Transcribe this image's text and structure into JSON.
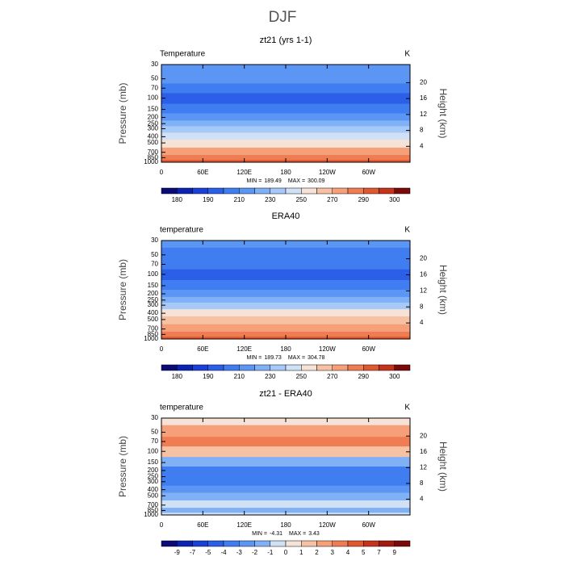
{
  "title": "DJF",
  "chart_data": [
    {
      "type": "contour",
      "title": "zt21 (yrs 1-1)",
      "field_label": "Temperature",
      "units": "K",
      "y_label": "Pressure (mb)",
      "y2_label": "Height (km)",
      "y_log": true,
      "ylim": [
        30,
        1000
      ],
      "yticks": [
        30,
        50,
        70,
        100,
        150,
        200,
        250,
        300,
        400,
        500,
        700,
        850,
        1000
      ],
      "y2lim": [
        24.55,
        0
      ],
      "y2ticks": [
        4,
        8,
        12,
        16,
        20
      ],
      "xlim": [
        0,
        360
      ],
      "xticks": [
        0,
        {
          "value": 60,
          "label": "60E"
        },
        {
          "value": 120,
          "label": "120E"
        },
        180,
        {
          "value": 240,
          "label": "120W"
        },
        {
          "value": 300,
          "label": "60W"
        }
      ],
      "min_text": "MIN =",
      "min": 189.49,
      "max_text": "MAX =",
      "max": 300.09,
      "field": {
        "pressure": [
          30,
          50,
          70,
          100,
          150,
          200,
          250,
          300,
          400,
          500,
          700,
          850,
          1000
        ],
        "values": [
          216,
          211,
          203,
          196,
          204,
          214,
          224,
          234,
          249,
          259,
          274,
          284,
          291
        ]
      },
      "colorbar": {
        "levels": [
          180,
          185,
          190,
          200,
          210,
          220,
          230,
          240,
          250,
          260,
          270,
          280,
          290,
          295,
          300
        ],
        "ticks": [
          180,
          190,
          210,
          230,
          250,
          270,
          290,
          300
        ],
        "colors": [
          "#0a0a78",
          "#0b22b2",
          "#1b40d6",
          "#2b5fe8",
          "#3f7df0",
          "#5b96f5",
          "#80b1f7",
          "#a6c9f7",
          "#d0e1f5",
          "#f6e2d6",
          "#f7c1a3",
          "#f5a079",
          "#ef7c52",
          "#e05830",
          "#c7321a",
          "#7a0a0a"
        ]
      }
    },
    {
      "type": "contour",
      "title": "ERA40",
      "field_label": "temperature",
      "units": "K",
      "y_label": "Pressure (mb)",
      "y2_label": "Height (km)",
      "y_log": true,
      "ylim": [
        30,
        1000
      ],
      "yticks": [
        30,
        50,
        70,
        100,
        150,
        200,
        250,
        300,
        400,
        500,
        700,
        850,
        1000
      ],
      "y2lim": [
        24.55,
        0
      ],
      "y2ticks": [
        4,
        8,
        12,
        16,
        20
      ],
      "xlim": [
        0,
        360
      ],
      "xticks": [
        0,
        {
          "value": 60,
          "label": "60E"
        },
        {
          "value": 120,
          "label": "120E"
        },
        180,
        {
          "value": 240,
          "label": "120W"
        },
        {
          "value": 300,
          "label": "60W"
        }
      ],
      "min_text": "MIN =",
      "min": 189.73,
      "max_text": "MAX =",
      "max": 304.78,
      "field": {
        "pressure": [
          30,
          50,
          70,
          100,
          150,
          200,
          250,
          300,
          400,
          500,
          700,
          850,
          1000
        ],
        "values": [
          214,
          208,
          200,
          194,
          205,
          216,
          227,
          236,
          250,
          260,
          275,
          285,
          292
        ]
      },
      "colorbar": {
        "levels": [
          180,
          185,
          190,
          200,
          210,
          220,
          230,
          240,
          250,
          260,
          270,
          280,
          290,
          295,
          300
        ],
        "ticks": [
          180,
          190,
          210,
          230,
          250,
          270,
          290,
          300
        ],
        "colors": [
          "#0a0a78",
          "#0b22b2",
          "#1b40d6",
          "#2b5fe8",
          "#3f7df0",
          "#5b96f5",
          "#80b1f7",
          "#a6c9f7",
          "#d0e1f5",
          "#f6e2d6",
          "#f7c1a3",
          "#f5a079",
          "#ef7c52",
          "#e05830",
          "#c7321a",
          "#7a0a0a"
        ]
      }
    },
    {
      "type": "contour",
      "title": "zt21 - ERA40",
      "field_label": "temperature",
      "units": "K",
      "y_label": "Pressure (mb)",
      "y2_label": "Height (km)",
      "y_log": true,
      "ylim": [
        30,
        1000
      ],
      "yticks": [
        30,
        50,
        70,
        100,
        150,
        200,
        250,
        300,
        400,
        500,
        700,
        850,
        1000
      ],
      "y2lim": [
        24.55,
        0
      ],
      "y2ticks": [
        4,
        8,
        12,
        16,
        20
      ],
      "xlim": [
        0,
        360
      ],
      "xticks": [
        0,
        {
          "value": 60,
          "label": "60E"
        },
        {
          "value": 120,
          "label": "120E"
        },
        180,
        {
          "value": 240,
          "label": "120W"
        },
        {
          "value": 300,
          "label": "60W"
        }
      ],
      "min_text": "MIN =",
      "min": -4.31,
      "max_text": "MAX =",
      "max": 3.43,
      "field": {
        "pressure": [
          30,
          50,
          70,
          100,
          150,
          200,
          250,
          300,
          400,
          500,
          700,
          850,
          1000
        ],
        "values": [
          0.5,
          2.2,
          3.2,
          1.5,
          -1.5,
          -3.2,
          -3.3,
          -3.1,
          -2.5,
          -1.8,
          -0.8,
          -1.5,
          -0.5
        ]
      },
      "colorbar": {
        "levels": [
          -9,
          -7,
          -5,
          -4,
          -3,
          -2,
          -1,
          0,
          1,
          2,
          3,
          4,
          5,
          7,
          9
        ],
        "ticks": [
          -9,
          -7,
          -5,
          -4,
          -3,
          -2,
          -1,
          0,
          1,
          2,
          3,
          4,
          5,
          7,
          9
        ],
        "colors": [
          "#0a0a78",
          "#0b22b2",
          "#1b40d6",
          "#2b5fe8",
          "#3f7df0",
          "#5b96f5",
          "#80b1f7",
          "#d0e1f5",
          "#f6e2d6",
          "#f7c1a3",
          "#f5a079",
          "#ef7c52",
          "#e05830",
          "#c7321a",
          "#a01a10",
          "#7a0a0a"
        ]
      }
    }
  ]
}
